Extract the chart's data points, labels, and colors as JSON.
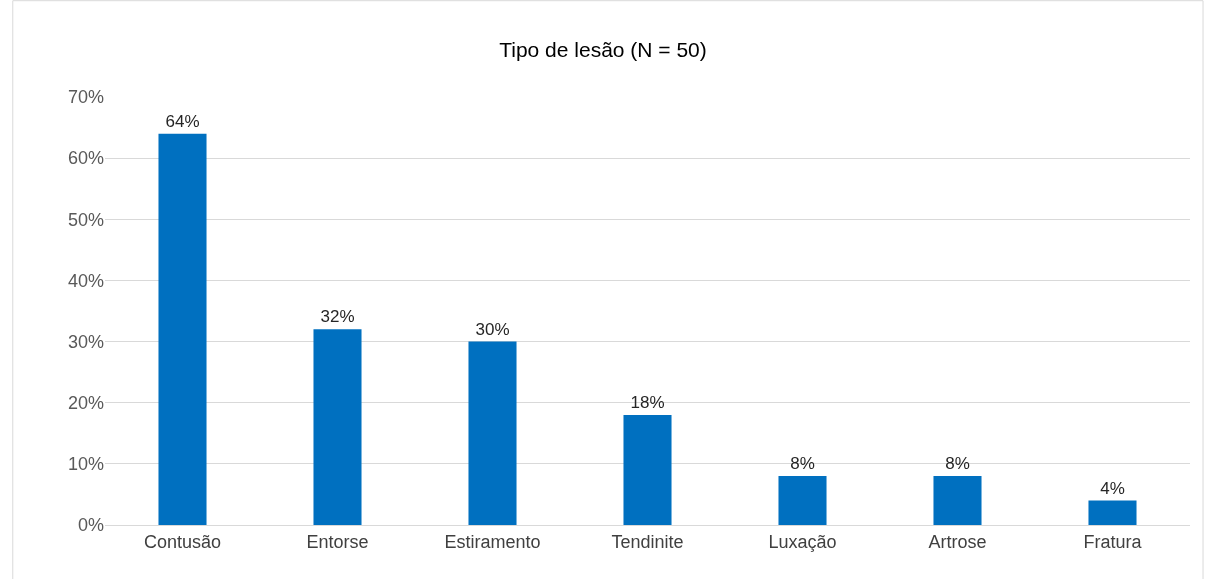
{
  "chart_data": {
    "type": "bar",
    "title": "Tipo de lesão (N = 50)",
    "categories": [
      "Contusão",
      "Entorse",
      "Estiramento",
      "Tendinite",
      "Luxação",
      "Artrose",
      "Fratura"
    ],
    "values": [
      64,
      32,
      30,
      18,
      8,
      8,
      4
    ],
    "value_labels": [
      "64%",
      "32%",
      "30%",
      "18%",
      "8%",
      "8%",
      "4%"
    ],
    "color": "#0070c0",
    "ylim": [
      0,
      70
    ],
    "yticks": [
      {
        "value": 0,
        "label": "0%"
      },
      {
        "value": 10,
        "label": "10%"
      },
      {
        "value": 20,
        "label": "20%"
      },
      {
        "value": 30,
        "label": "30%"
      },
      {
        "value": 40,
        "label": "40%"
      },
      {
        "value": 50,
        "label": "50%"
      },
      {
        "value": 60,
        "label": "60%"
      },
      {
        "value": 70,
        "label": "70%"
      }
    ],
    "grid": "y",
    "legend": false
  }
}
